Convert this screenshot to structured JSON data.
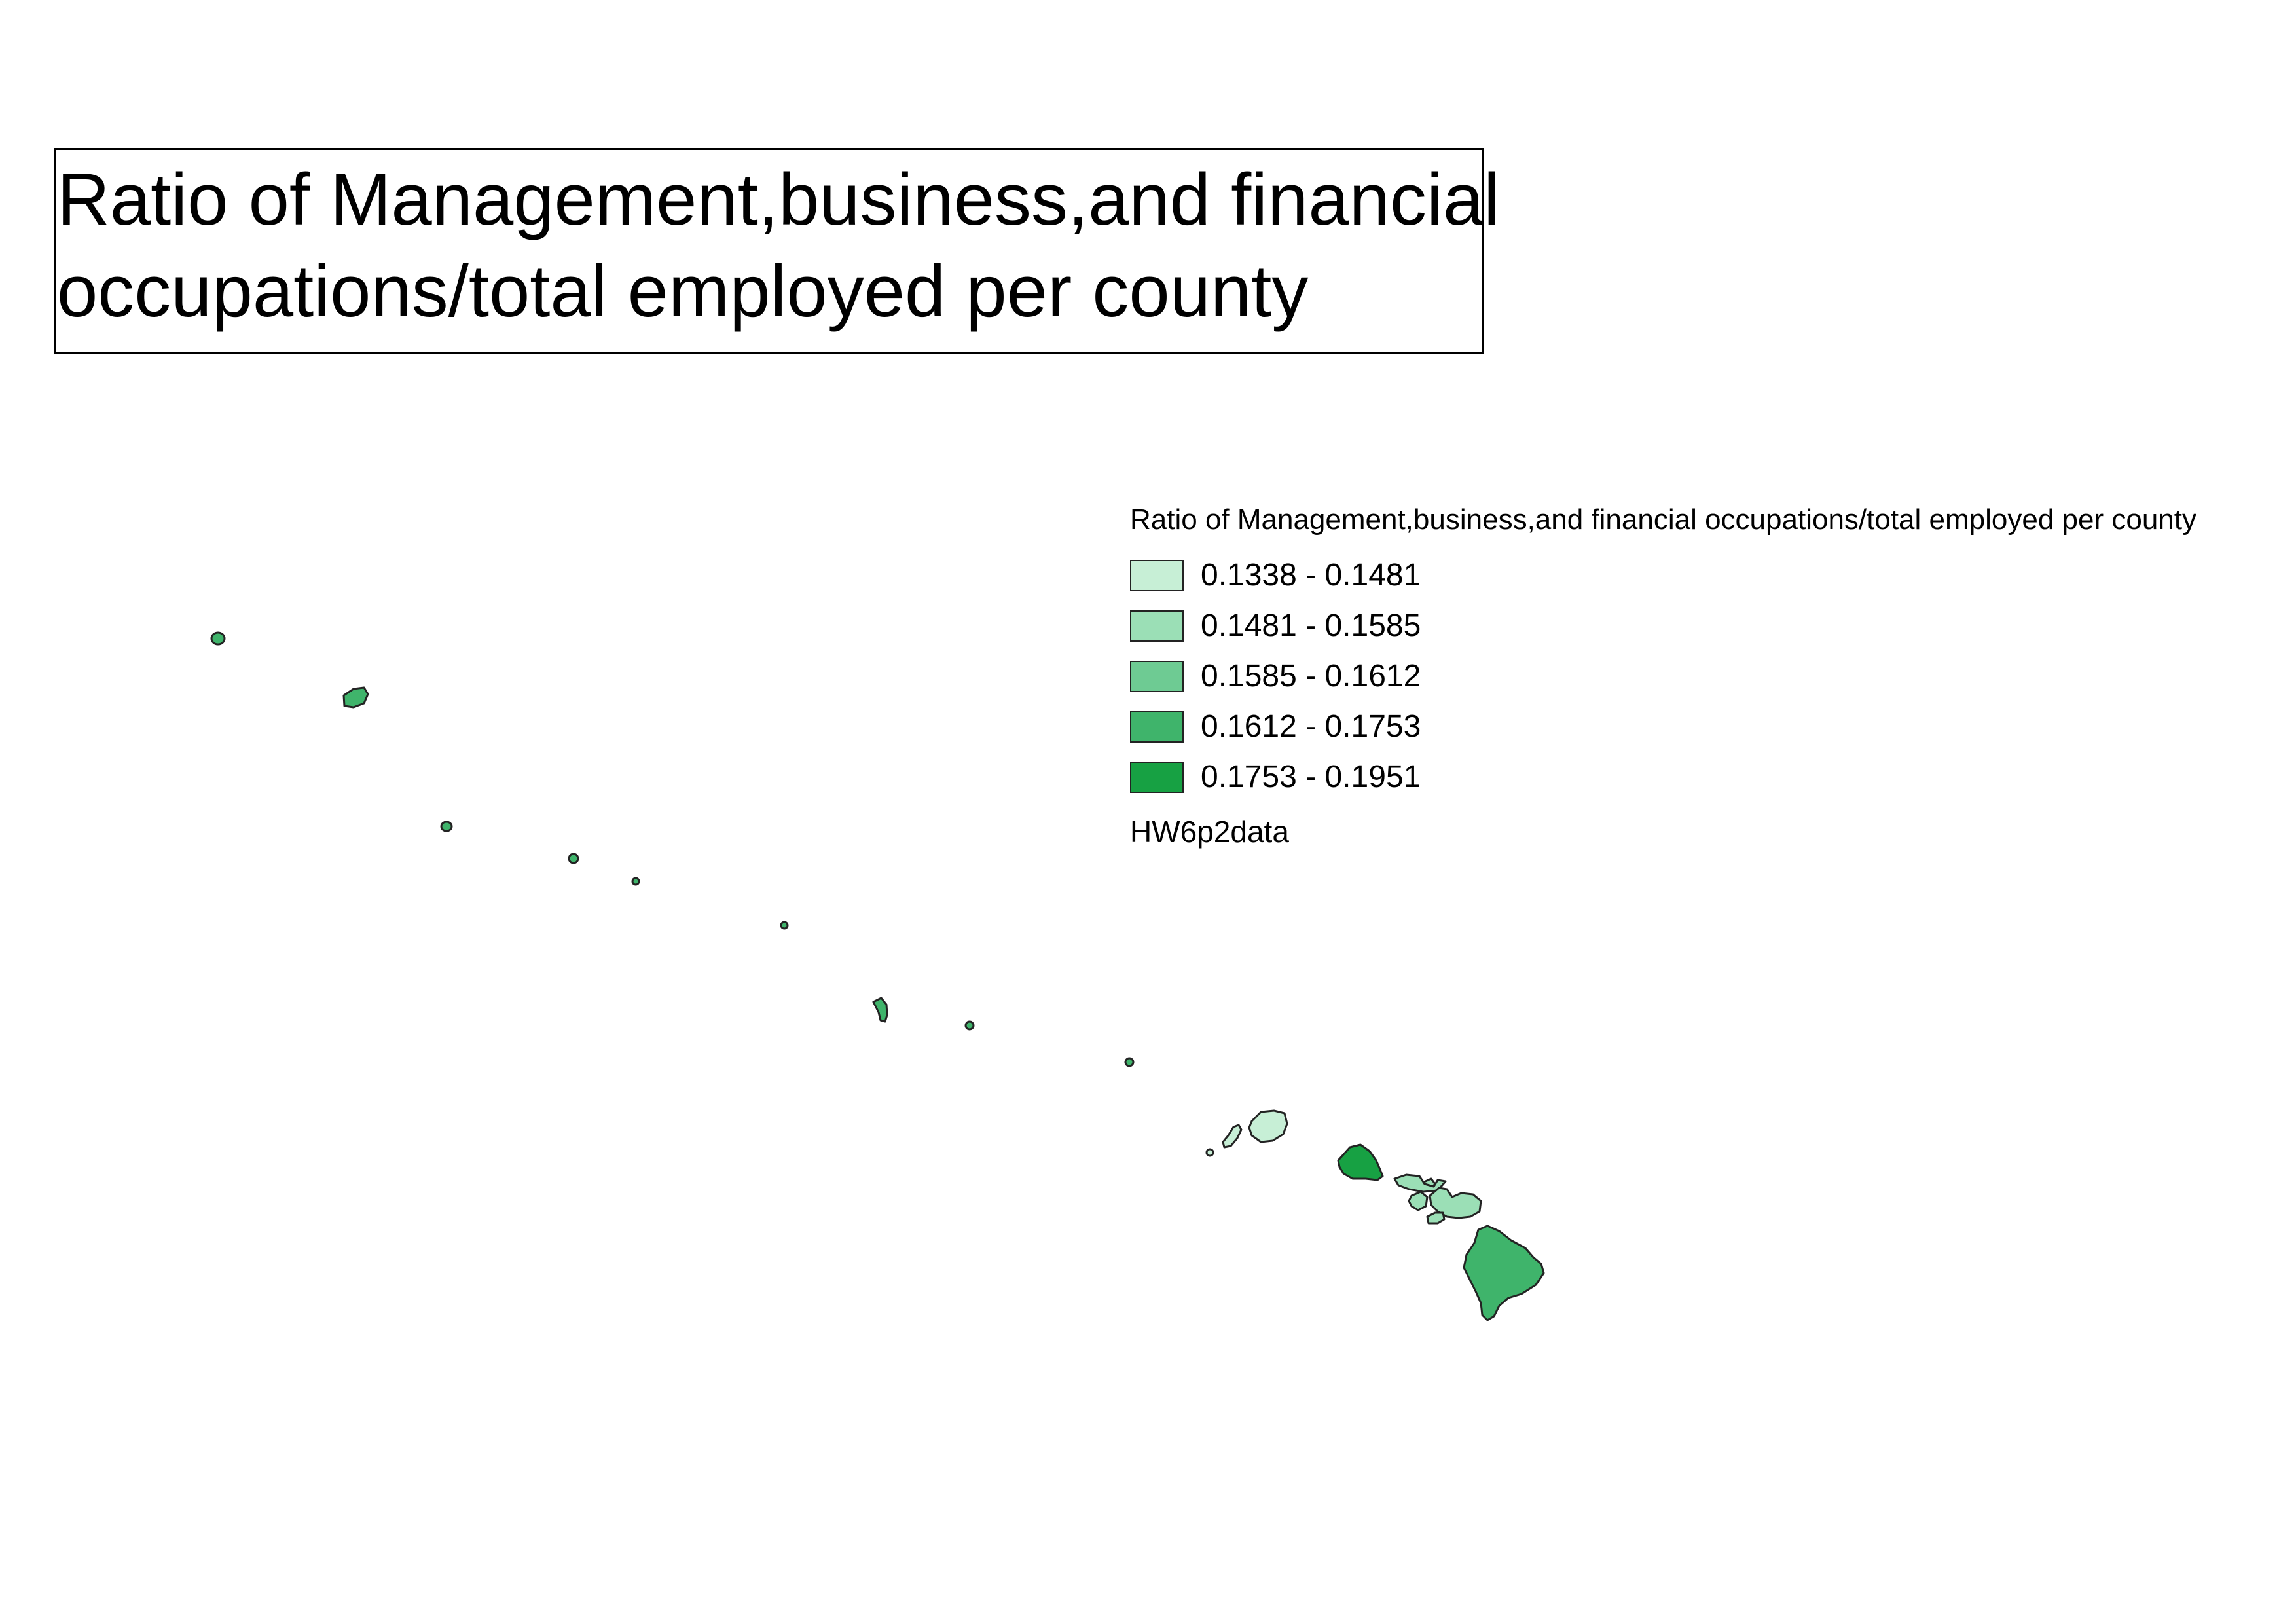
{
  "title": {
    "lines": [
      "Ratio of Management,business,and financial",
      "occupations/total employed per county"
    ]
  },
  "legend": {
    "title": "Ratio of Management,business,and financial occupations/total employed per county",
    "classes": [
      {
        "label": "0.1338 - 0.1481",
        "color": "#c7efd6"
      },
      {
        "label": "0.1481 - 0.1585",
        "color": "#9bdfb6"
      },
      {
        "label": "0.1585 - 0.1612",
        "color": "#6ecb93"
      },
      {
        "label": "0.1612 - 0.1753",
        "color": "#3fb46b"
      },
      {
        "label": "0.1753 - 0.1951",
        "color": "#17a143"
      }
    ],
    "layer_name": "HW6p2data"
  },
  "map": {
    "features": [
      {
        "name": "kauai-county",
        "class": 0
      },
      {
        "name": "honolulu-county",
        "class": 4
      },
      {
        "name": "maui-county",
        "class": 1
      },
      {
        "name": "hawaii-county",
        "class": 3
      },
      {
        "name": "kalawao-county",
        "class": 1
      },
      {
        "name": "northwestern-islands",
        "class": 3
      }
    ]
  }
}
